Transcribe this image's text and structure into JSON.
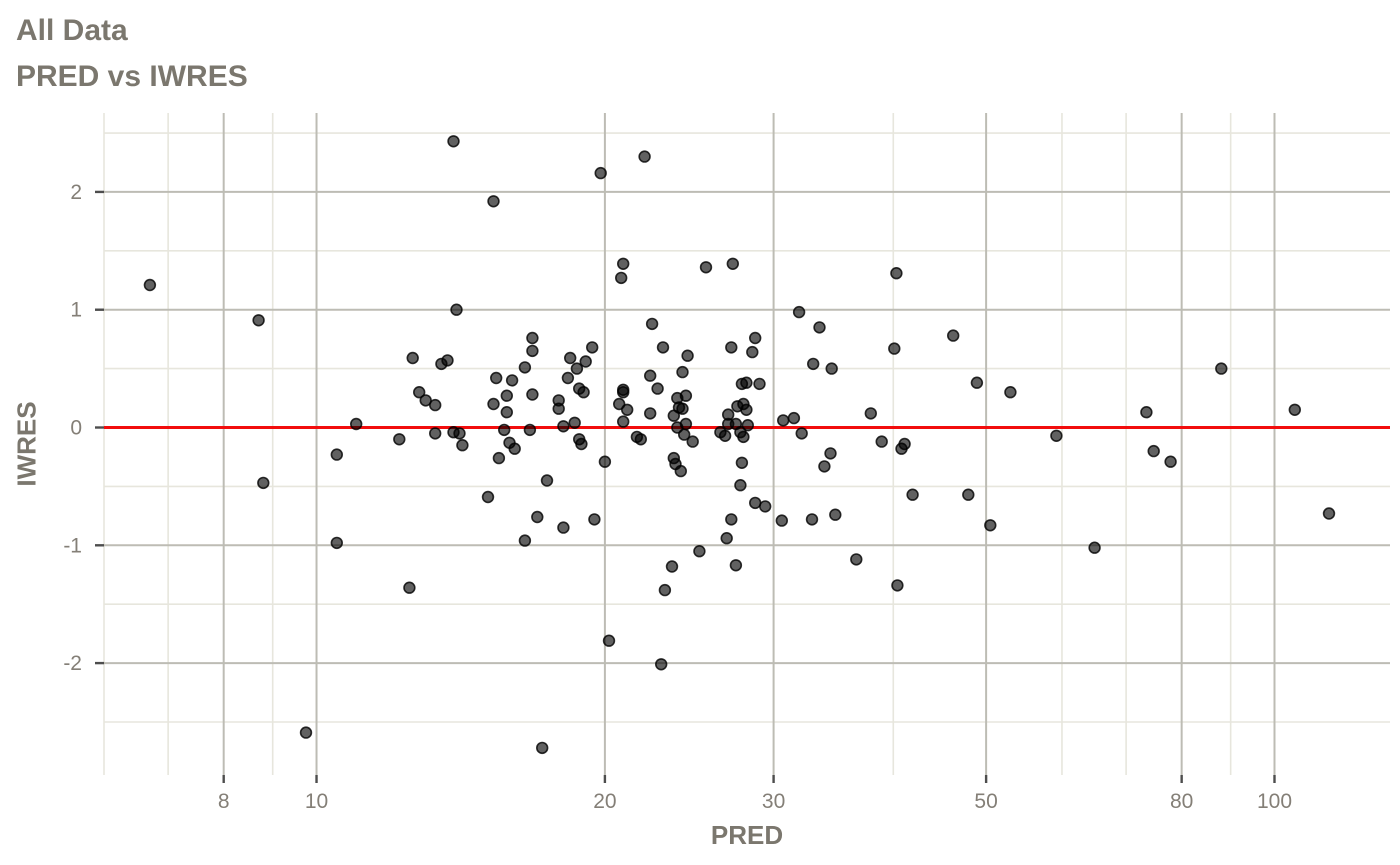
{
  "title": {
    "line1": "All Data",
    "line2": "PRED vs IWRES"
  },
  "axes": {
    "x": {
      "label": "PRED",
      "scale": "log10",
      "domain": [
        6.0,
        132
      ],
      "major_ticks": [
        8,
        10,
        20,
        30,
        50,
        80,
        100
      ],
      "tick_labels": [
        "8",
        "10",
        "20",
        "30",
        "50",
        "80",
        "100"
      ],
      "minor_gridlines": [
        6,
        7,
        9,
        40,
        60,
        70,
        90
      ]
    },
    "y": {
      "label": "IWRES",
      "scale": "linear",
      "domain": [
        -2.95,
        2.67
      ],
      "major_ticks": [
        -2,
        -1,
        0,
        1,
        2
      ],
      "tick_labels": [
        "-2",
        "-1",
        "0",
        "1",
        "2"
      ],
      "minor_gridlines": [
        -2.5,
        -1.5,
        -0.5,
        0.5,
        1.5,
        2.5
      ]
    }
  },
  "colors": {
    "background": "#ffffff",
    "grid_major": "#bdbcb4",
    "grid_minor": "#e7e6dd",
    "refline": "#f20d0d",
    "point_fill": "rgba(0,0,0,0.62)",
    "point_stroke": "rgba(0,0,0,0.80)",
    "tick_mark": "#4d4d4d",
    "text_gray": "#7b776e"
  },
  "chart_data": {
    "type": "scatter",
    "title": "All Data",
    "subtitle": "PRED vs IWRES",
    "xlabel": "PRED",
    "ylabel": "IWRES",
    "x_scale": "log10",
    "xlim": [
      6.0,
      132
    ],
    "ylim": [
      -2.95,
      2.67
    ],
    "grid": true,
    "reference_line_y": 0,
    "points": [
      [
        13.9,
        2.43
      ],
      [
        22.0,
        2.3
      ],
      [
        19.8,
        2.16
      ],
      [
        15.3,
        1.92
      ],
      [
        20.9,
        1.39
      ],
      [
        27.2,
        1.39
      ],
      [
        25.5,
        1.36
      ],
      [
        40.3,
        1.31
      ],
      [
        20.8,
        1.27
      ],
      [
        6.7,
        1.21
      ],
      [
        14.0,
        1.0
      ],
      [
        31.9,
        0.98
      ],
      [
        8.7,
        0.91
      ],
      [
        22.4,
        0.88
      ],
      [
        33.5,
        0.85
      ],
      [
        46.2,
        0.78
      ],
      [
        16.8,
        0.76
      ],
      [
        28.7,
        0.76
      ],
      [
        19.4,
        0.68
      ],
      [
        23.0,
        0.68
      ],
      [
        27.1,
        0.68
      ],
      [
        40.1,
        0.67
      ],
      [
        16.8,
        0.65
      ],
      [
        28.5,
        0.64
      ],
      [
        24.4,
        0.61
      ],
      [
        12.6,
        0.59
      ],
      [
        18.4,
        0.59
      ],
      [
        13.7,
        0.57
      ],
      [
        19.1,
        0.56
      ],
      [
        13.5,
        0.54
      ],
      [
        33.0,
        0.54
      ],
      [
        16.5,
        0.51
      ],
      [
        34.5,
        0.5
      ],
      [
        88.0,
        0.5
      ],
      [
        18.7,
        0.5
      ],
      [
        24.1,
        0.47
      ],
      [
        22.3,
        0.44
      ],
      [
        18.3,
        0.42
      ],
      [
        15.4,
        0.42
      ],
      [
        16.0,
        0.4
      ],
      [
        48.9,
        0.38
      ],
      [
        28.1,
        0.38
      ],
      [
        27.8,
        0.37
      ],
      [
        29.0,
        0.37
      ],
      [
        22.7,
        0.33
      ],
      [
        18.8,
        0.33
      ],
      [
        19.0,
        0.3
      ],
      [
        20.9,
        0.32
      ],
      [
        20.9,
        0.3
      ],
      [
        53.0,
        0.3
      ],
      [
        12.8,
        0.3
      ],
      [
        16.8,
        0.28
      ],
      [
        24.3,
        0.27
      ],
      [
        15.8,
        0.27
      ],
      [
        23.8,
        0.25
      ],
      [
        13.0,
        0.23
      ],
      [
        17.9,
        0.23
      ],
      [
        20.7,
        0.2
      ],
      [
        15.3,
        0.2
      ],
      [
        13.3,
        0.19
      ],
      [
        23.9,
        0.17
      ],
      [
        27.5,
        0.18
      ],
      [
        27.9,
        0.2
      ],
      [
        28.1,
        0.15
      ],
      [
        24.1,
        0.16
      ],
      [
        21.1,
        0.15
      ],
      [
        105,
        0.15
      ],
      [
        15.8,
        0.13
      ],
      [
        22.3,
        0.12
      ],
      [
        73.5,
        0.13
      ],
      [
        37.9,
        0.12
      ],
      [
        17.9,
        0.16
      ],
      [
        23.6,
        0.1
      ],
      [
        26.9,
        0.11
      ],
      [
        30.7,
        0.06
      ],
      [
        31.5,
        0.08
      ],
      [
        18.6,
        0.04
      ],
      [
        20.9,
        0.05
      ],
      [
        11.0,
        0.03
      ],
      [
        26.9,
        0.03
      ],
      [
        27.4,
        0.03
      ],
      [
        28.2,
        0.02
      ],
      [
        24.3,
        0.03
      ],
      [
        23.8,
        0.0
      ],
      [
        18.1,
        0.01
      ],
      [
        15.7,
        -0.02
      ],
      [
        16.7,
        -0.02
      ],
      [
        13.9,
        -0.04
      ],
      [
        14.1,
        -0.05
      ],
      [
        13.3,
        -0.05
      ],
      [
        26.4,
        -0.04
      ],
      [
        26.7,
        -0.07
      ],
      [
        27.7,
        -0.04
      ],
      [
        27.9,
        -0.08
      ],
      [
        24.2,
        -0.06
      ],
      [
        21.6,
        -0.08
      ],
      [
        21.8,
        -0.1
      ],
      [
        32.1,
        -0.05
      ],
      [
        59.2,
        -0.07
      ],
      [
        12.2,
        -0.1
      ],
      [
        18.8,
        -0.1
      ],
      [
        18.9,
        -0.14
      ],
      [
        24.7,
        -0.12
      ],
      [
        38.9,
        -0.12
      ],
      [
        41.1,
        -0.14
      ],
      [
        40.8,
        -0.18
      ],
      [
        14.2,
        -0.15
      ],
      [
        15.9,
        -0.13
      ],
      [
        16.1,
        -0.18
      ],
      [
        20.0,
        -0.29
      ],
      [
        10.5,
        -0.23
      ],
      [
        15.5,
        -0.26
      ],
      [
        23.6,
        -0.26
      ],
      [
        23.7,
        -0.31
      ],
      [
        24.0,
        -0.37
      ],
      [
        27.8,
        -0.3
      ],
      [
        34.4,
        -0.22
      ],
      [
        33.9,
        -0.33
      ],
      [
        74.8,
        -0.2
      ],
      [
        77.9,
        -0.29
      ],
      [
        8.8,
        -0.47
      ],
      [
        17.4,
        -0.45
      ],
      [
        27.7,
        -0.49
      ],
      [
        15.1,
        -0.59
      ],
      [
        41.9,
        -0.57
      ],
      [
        47.9,
        -0.57
      ],
      [
        28.7,
        -0.64
      ],
      [
        29.4,
        -0.67
      ],
      [
        17.0,
        -0.76
      ],
      [
        18.1,
        -0.85
      ],
      [
        19.5,
        -0.78
      ],
      [
        27.1,
        -0.78
      ],
      [
        30.6,
        -0.79
      ],
      [
        32.9,
        -0.78
      ],
      [
        34.8,
        -0.74
      ],
      [
        114,
        -0.73
      ],
      [
        50.5,
        -0.83
      ],
      [
        26.8,
        -0.94
      ],
      [
        10.5,
        -0.98
      ],
      [
        16.5,
        -0.96
      ],
      [
        25.1,
        -1.05
      ],
      [
        64.9,
        -1.02
      ],
      [
        36.6,
        -1.12
      ],
      [
        27.4,
        -1.17
      ],
      [
        23.5,
        -1.18
      ],
      [
        40.4,
        -1.34
      ],
      [
        12.5,
        -1.36
      ],
      [
        23.1,
        -1.38
      ],
      [
        20.2,
        -1.81
      ],
      [
        22.9,
        -2.01
      ],
      [
        9.75,
        -2.59
      ],
      [
        17.2,
        -2.72
      ]
    ]
  }
}
